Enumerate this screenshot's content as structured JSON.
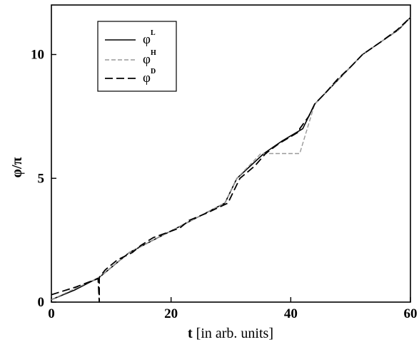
{
  "chart_data": {
    "type": "line",
    "xlabel_main": "t",
    "xlabel_unit": " [in arb. units]",
    "ylabel": "φ/π",
    "xlim": [
      0,
      60
    ],
    "ylim": [
      0,
      12
    ],
    "xticks": [
      0,
      20,
      40,
      60
    ],
    "yticks": [
      0,
      5,
      10
    ],
    "grid": false,
    "legend_position": "top-left",
    "series": [
      {
        "name": "φ",
        "sup": "L",
        "style": "solid",
        "color": "#000000",
        "x": [
          0,
          4,
          8,
          13,
          17,
          21,
          25,
          29,
          31,
          35.5,
          38.5,
          42,
          44,
          48,
          52,
          55,
          58,
          60
        ],
        "y": [
          0.1,
          0.5,
          1.0,
          2.0,
          2.5,
          3.0,
          3.5,
          4.0,
          5.0,
          6.0,
          6.5,
          7.0,
          8.0,
          9.0,
          10.0,
          10.5,
          11.0,
          11.5
        ]
      },
      {
        "name": "φ",
        "sup": "H",
        "style": "dashed",
        "color": "#999999",
        "x": [
          0,
          8,
          13,
          21,
          29,
          31,
          35,
          36,
          41.5,
          44,
          48,
          52,
          58,
          60
        ],
        "y": [
          0.1,
          1.0,
          2.0,
          3.0,
          4.0,
          5.0,
          6.0,
          6.0,
          6.0,
          8.0,
          9.0,
          10.0,
          11.0,
          11.5
        ]
      },
      {
        "name": "φ",
        "sup": "D",
        "style": "dashed",
        "color": "#000000",
        "x": [
          0,
          4,
          7.8,
          8,
          8,
          9,
          11,
          13.5,
          13.5,
          15,
          17,
          21.5,
          21.5,
          23,
          26,
          29.5,
          29.5,
          30.5,
          31.5,
          31.5,
          34,
          35.8,
          35.8,
          38,
          41.5,
          41.5,
          43,
          44,
          44,
          46,
          47.8,
          47.8,
          50,
          52,
          52,
          55,
          57.8,
          57.8,
          60
        ],
        "y": [
          0.3,
          0.6,
          0.95,
          0.0,
          1.0,
          1.3,
          1.7,
          2.0,
          2.0,
          2.3,
          2.6,
          3.0,
          3.0,
          3.3,
          3.6,
          4.0,
          4.0,
          4.5,
          5.0,
          5.0,
          5.5,
          6.0,
          6.0,
          6.4,
          6.9,
          7.0,
          7.5,
          8.0,
          8.0,
          8.5,
          9.0,
          9.0,
          9.5,
          10.0,
          10.0,
          10.5,
          11.0,
          11.0,
          11.5
        ]
      }
    ]
  }
}
